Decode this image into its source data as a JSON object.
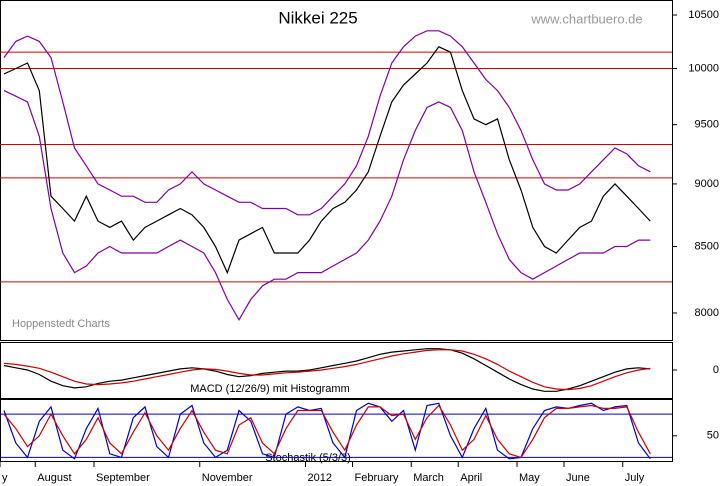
{
  "chart_data": [
    {
      "type": "line",
      "title": "Nikkei 225",
      "source": "www.chartbuero.de",
      "note": "Hoppenstedt Charts",
      "log_y": true,
      "categories": [
        "y",
        null,
        null,
        "August",
        null,
        null,
        null,
        null,
        "September",
        null,
        null,
        null,
        null,
        null,
        null,
        null,
        null,
        "November",
        null,
        null,
        null,
        null,
        null,
        null,
        null,
        null,
        "2012",
        null,
        null,
        null,
        "February",
        null,
        null,
        null,
        null,
        "March",
        null,
        null,
        null,
        "April",
        null,
        null,
        null,
        null,
        "May",
        null,
        null,
        null,
        "June",
        null,
        null,
        null,
        null,
        "July",
        null,
        null
      ],
      "ylim": [
        7805,
        10645
      ],
      "yticks": [
        8000,
        8500,
        9000,
        9500,
        10000,
        10500
      ],
      "hlines": [
        10150,
        10000,
        9330,
        9050,
        8230
      ],
      "hline_color": "#cc0000",
      "series": [
        {
          "color": "#000000",
          "values": [
            9950,
            10000,
            10050,
            9800,
            8900,
            8800,
            8700,
            8900,
            8700,
            8650,
            8700,
            8550,
            8650,
            8700,
            8750,
            8800,
            8750,
            8650,
            8500,
            8300,
            8550,
            8600,
            8650,
            8450,
            8450,
            8450,
            8550,
            8700,
            8800,
            8850,
            8950,
            9100,
            9400,
            9700,
            9850,
            9950,
            10050,
            10200,
            10150,
            9800,
            9550,
            9500,
            9550,
            9200,
            8950,
            8650,
            8500,
            8450,
            8550,
            8650,
            8700,
            8900,
            9000,
            8900,
            8800,
            8700
          ]
        },
        {
          "color": "#8000a0",
          "values": [
            10100,
            10250,
            10300,
            10250,
            10100,
            9700,
            9300,
            9150,
            9000,
            8950,
            8900,
            8900,
            8850,
            8850,
            8950,
            9000,
            9100,
            9000,
            8950,
            8900,
            8850,
            8850,
            8800,
            8800,
            8800,
            8750,
            8750,
            8800,
            8900,
            9000,
            9150,
            9400,
            9750,
            10050,
            10200,
            10300,
            10350,
            10350,
            10300,
            10200,
            10050,
            9900,
            9800,
            9650,
            9450,
            9200,
            9000,
            8950,
            8950,
            9000,
            9100,
            9200,
            9300,
            9250,
            9150,
            9100
          ]
        },
        {
          "color": "#8000a0",
          "values": [
            9800,
            9750,
            9700,
            9400,
            8800,
            8450,
            8300,
            8350,
            8450,
            8500,
            8450,
            8450,
            8450,
            8450,
            8500,
            8550,
            8500,
            8450,
            8300,
            8100,
            7950,
            8100,
            8200,
            8250,
            8250,
            8300,
            8300,
            8300,
            8350,
            8400,
            8450,
            8550,
            8700,
            8900,
            9200,
            9450,
            9650,
            9700,
            9650,
            9450,
            9100,
            8850,
            8600,
            8400,
            8300,
            8250,
            8300,
            8350,
            8400,
            8450,
            8450,
            8450,
            8500,
            8500,
            8550,
            8550
          ]
        }
      ]
    },
    {
      "type": "line",
      "title": "MACD (12/26/9) mit Histogramm",
      "ylim": [
        -250,
        250
      ],
      "yticks": [
        0
      ],
      "series": [
        {
          "color": "#000000",
          "values": [
            40,
            20,
            0,
            -40,
            -100,
            -140,
            -160,
            -150,
            -120,
            -100,
            -90,
            -70,
            -50,
            -30,
            -10,
            10,
            20,
            10,
            -10,
            -40,
            -60,
            -50,
            -30,
            -20,
            -10,
            -10,
            0,
            20,
            40,
            60,
            80,
            110,
            140,
            160,
            170,
            180,
            190,
            190,
            180,
            150,
            100,
            40,
            -20,
            -80,
            -130,
            -170,
            -190,
            -190,
            -170,
            -140,
            -100,
            -60,
            -20,
            10,
            20,
            10
          ]
        },
        {
          "color": "#cc0000",
          "values": [
            60,
            50,
            35,
            15,
            -20,
            -60,
            -100,
            -125,
            -130,
            -125,
            -115,
            -100,
            -80,
            -60,
            -40,
            -20,
            0,
            10,
            5,
            -10,
            -30,
            -45,
            -45,
            -35,
            -25,
            -20,
            -10,
            0,
            15,
            30,
            50,
            75,
            100,
            125,
            145,
            160,
            175,
            180,
            180,
            170,
            140,
            100,
            50,
            -10,
            -60,
            -110,
            -150,
            -170,
            -175,
            -165,
            -140,
            -100,
            -60,
            -25,
            0,
            15
          ]
        }
      ]
    },
    {
      "type": "line",
      "title": "Stochastik (5/3/3)",
      "ylim": [
        15,
        101
      ],
      "yticks": [
        50
      ],
      "hlines": [
        80,
        20
      ],
      "hline_color": "#0000cc",
      "series": [
        {
          "color": "#0000cc",
          "values": [
            85,
            40,
            20,
            70,
            90,
            30,
            18,
            60,
            88,
            25,
            20,
            75,
            90,
            35,
            20,
            80,
            92,
            40,
            20,
            30,
            85,
            70,
            25,
            20,
            80,
            90,
            85,
            88,
            40,
            20,
            85,
            95,
            90,
            70,
            85,
            30,
            92,
            95,
            50,
            20,
            60,
            88,
            30,
            18,
            20,
            60,
            85,
            90,
            88,
            92,
            95,
            85,
            90,
            92,
            40,
            18
          ]
        },
        {
          "color": "#cc0000",
          "values": [
            80,
            60,
            35,
            50,
            80,
            50,
            25,
            45,
            75,
            40,
            25,
            55,
            82,
            50,
            30,
            60,
            85,
            55,
            30,
            25,
            65,
            75,
            40,
            25,
            60,
            85,
            85,
            85,
            55,
            30,
            65,
            90,
            90,
            78,
            80,
            45,
            75,
            92,
            65,
            30,
            45,
            78,
            45,
            25,
            20,
            45,
            75,
            88,
            88,
            90,
            92,
            88,
            88,
            90,
            55,
            25
          ]
        }
      ]
    }
  ]
}
